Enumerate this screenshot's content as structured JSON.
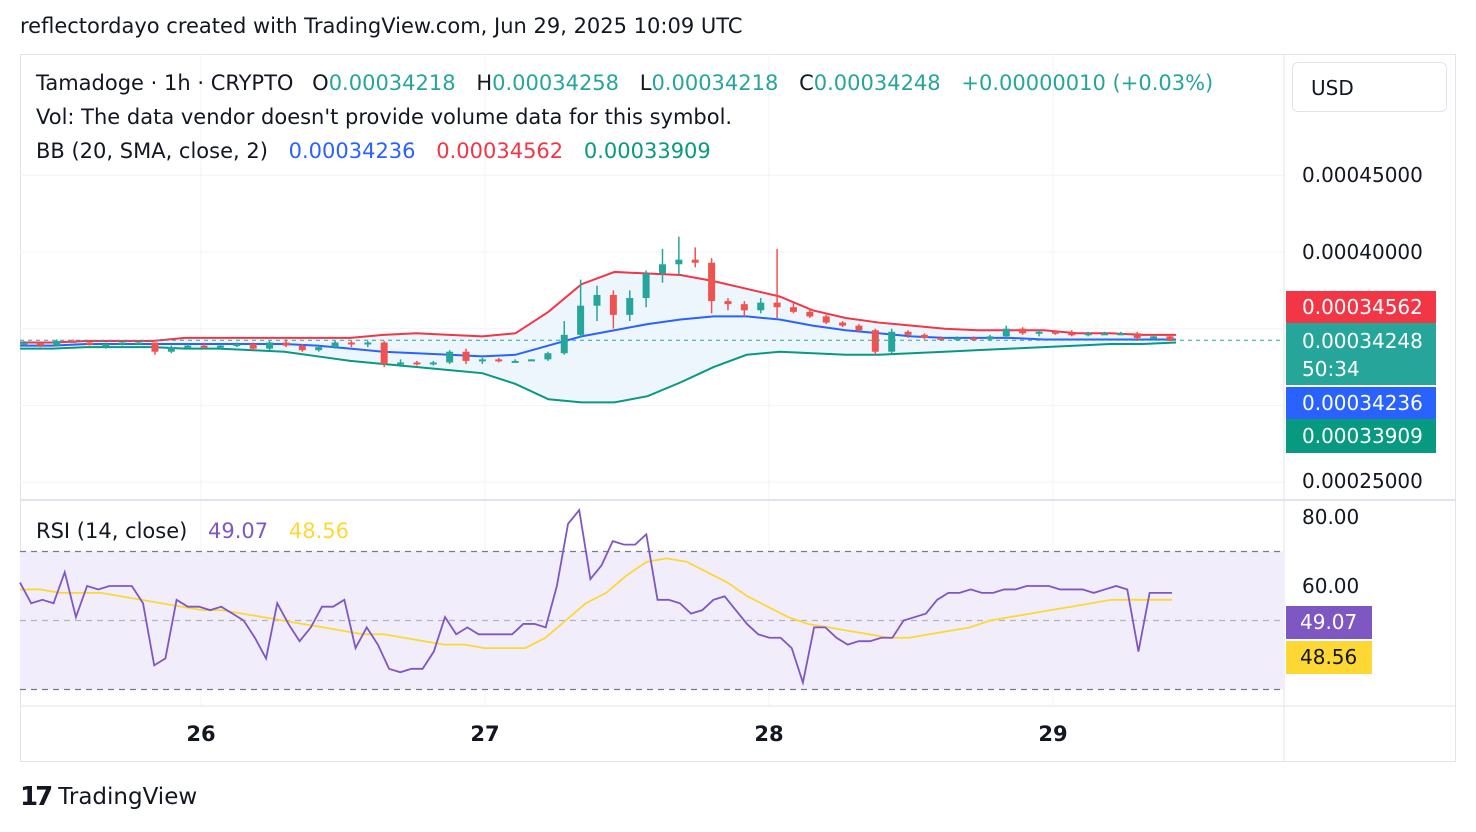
{
  "header": {
    "credit": "reflectordayo created with TradingView.com, Jun 29, 2025 10:09 UTC"
  },
  "legend": {
    "symbol": "Tamadoge · 1h · CRYPTO",
    "o_label": "O",
    "o_value": "0.00034218",
    "h_label": "H",
    "h_value": "0.00034258",
    "l_label": "L",
    "l_value": "0.00034218",
    "c_label": "C",
    "c_value": "0.00034248",
    "change": "+0.00000010 (+0.03%)",
    "vol_text": "Vol: The data vendor doesn't provide volume data for this symbol.",
    "bb_label": "BB (20, SMA, close, 2)",
    "bb_basis": "0.00034236",
    "bb_upper": "0.00034562",
    "bb_lower": "0.00033909",
    "rsi_label": "RSI (14, close)",
    "rsi_value": "49.07",
    "rsi_ma": "48.56"
  },
  "price_axis": {
    "unit": "USD",
    "ticks": [
      "0.00045000",
      "0.00040000",
      "0.00025000"
    ],
    "badges": {
      "upper": "0.00034562",
      "last": "0.00034248",
      "countdown": "50:34",
      "basis": "0.00034236",
      "lower": "0.00033909"
    }
  },
  "rsi_axis": {
    "ticks": [
      "80.00",
      "60.00"
    ],
    "rsi_badge": "49.07",
    "ma_badge": "48.56"
  },
  "time_axis": {
    "ticks": [
      "26",
      "27",
      "28",
      "29"
    ]
  },
  "footer": {
    "brand": "TradingView",
    "logo": "17"
  },
  "colors": {
    "up": "#26a69a",
    "down": "#ef5350",
    "basis": "#2962ff",
    "upper": "#f23645",
    "lower": "#089981",
    "rsi": "#7e57c2",
    "rsi_ma": "#fdd835",
    "fill": "#eef6fd",
    "rsi_band": "#f1edfb"
  },
  "chart_data": [
    {
      "type": "candlestick",
      "title": "Tamadoge · 1h · CRYPTO",
      "ylim": [
        0.00025,
        0.00045
      ],
      "x_ticks": [
        "26",
        "27",
        "28",
        "29"
      ],
      "candles_ohlc": [
        [
          0.00034,
          0.000342,
          0.000339,
          0.000341
        ],
        [
          0.000341,
          0.000341,
          0.000338,
          0.000339
        ],
        [
          0.000339,
          0.000343,
          0.000339,
          0.000342
        ],
        [
          0.000342,
          0.000343,
          0.000341,
          0.000341
        ],
        [
          0.000341,
          0.000342,
          0.000339,
          0.00034
        ],
        [
          0.00034,
          0.000341,
          0.000337,
          0.00034
        ],
        [
          0.00034,
          0.000342,
          0.000339,
          0.000341
        ],
        [
          0.000341,
          0.000342,
          0.00034,
          0.000341
        ],
        [
          0.000341,
          0.000341,
          0.000333,
          0.000335
        ],
        [
          0.000335,
          0.000339,
          0.000334,
          0.000338
        ],
        [
          0.000338,
          0.00034,
          0.000337,
          0.000339
        ],
        [
          0.000339,
          0.000341,
          0.000337,
          0.000338
        ],
        [
          0.000338,
          0.00034,
          0.000337,
          0.000339
        ],
        [
          0.000339,
          0.000341,
          0.000338,
          0.00034
        ],
        [
          0.00034,
          0.000341,
          0.000336,
          0.000337
        ],
        [
          0.000337,
          0.000342,
          0.000336,
          0.000341
        ],
        [
          0.000341,
          0.000343,
          0.000338,
          0.000339
        ],
        [
          0.000339,
          0.00034,
          0.000335,
          0.000336
        ],
        [
          0.000336,
          0.000339,
          0.000335,
          0.000338
        ],
        [
          0.000338,
          0.000342,
          0.000337,
          0.000341
        ],
        [
          0.000341,
          0.000342,
          0.000338,
          0.00034
        ],
        [
          0.00034,
          0.000342,
          0.000338,
          0.000341
        ],
        [
          0.000341,
          0.000342,
          0.000325,
          0.000327
        ],
        [
          0.000327,
          0.00033,
          0.000325,
          0.000328
        ],
        [
          0.000328,
          0.000329,
          0.000326,
          0.000327
        ],
        [
          0.000327,
          0.000329,
          0.000326,
          0.000328
        ],
        [
          0.000328,
          0.000336,
          0.000327,
          0.000335
        ],
        [
          0.000335,
          0.000337,
          0.000327,
          0.000329
        ],
        [
          0.000329,
          0.000331,
          0.000327,
          0.00033
        ],
        [
          0.00033,
          0.000331,
          0.000328,
          0.000329
        ],
        [
          0.000329,
          0.00033,
          0.000328,
          0.000329
        ],
        [
          0.000329,
          0.00033,
          0.000329,
          0.00033
        ],
        [
          0.00033,
          0.000335,
          0.000329,
          0.000334
        ],
        [
          0.000334,
          0.000355,
          0.000333,
          0.000346
        ],
        [
          0.000346,
          0.000382,
          0.000344,
          0.000365
        ],
        [
          0.000365,
          0.000378,
          0.000355,
          0.000372
        ],
        [
          0.000372,
          0.000375,
          0.00035,
          0.000359
        ],
        [
          0.000359,
          0.000375,
          0.000355,
          0.00037
        ],
        [
          0.00037,
          0.000388,
          0.000364,
          0.000386
        ],
        [
          0.000386,
          0.000402,
          0.00038,
          0.000392
        ],
        [
          0.000392,
          0.00041,
          0.000385,
          0.000395
        ],
        [
          0.000395,
          0.000403,
          0.00039,
          0.000393
        ],
        [
          0.000393,
          0.000396,
          0.00036,
          0.000368
        ],
        [
          0.000368,
          0.00037,
          0.000362,
          0.000366
        ],
        [
          0.000366,
          0.000368,
          0.000358,
          0.000362
        ],
        [
          0.000362,
          0.00037,
          0.00036,
          0.000367
        ],
        [
          0.000367,
          0.000402,
          0.000357,
          0.000364
        ],
        [
          0.000364,
          0.000367,
          0.00036,
          0.000361
        ],
        [
          0.000361,
          0.000363,
          0.000357,
          0.000358
        ],
        [
          0.000358,
          0.000359,
          0.000353,
          0.000354
        ],
        [
          0.000354,
          0.000355,
          0.000351,
          0.000352
        ],
        [
          0.000352,
          0.000353,
          0.000348,
          0.000349
        ],
        [
          0.000349,
          0.00035,
          0.000333,
          0.000335
        ],
        [
          0.000335,
          0.00035,
          0.000334,
          0.000348
        ],
        [
          0.000348,
          0.000349,
          0.000344,
          0.000346
        ],
        [
          0.000346,
          0.000347,
          0.000343,
          0.000344
        ],
        [
          0.000344,
          0.000345,
          0.000342,
          0.000343
        ],
        [
          0.000343,
          0.000345,
          0.000342,
          0.000344
        ],
        [
          0.000344,
          0.000345,
          0.000342,
          0.000343
        ],
        [
          0.000343,
          0.000346,
          0.000342,
          0.000345
        ],
        [
          0.000345,
          0.000352,
          0.000344,
          0.00035
        ],
        [
          0.00035,
          0.000351,
          0.000346,
          0.000347
        ],
        [
          0.000347,
          0.000349,
          0.000345,
          0.000348
        ],
        [
          0.000348,
          0.000349,
          0.000346,
          0.000347
        ],
        [
          0.000347,
          0.000349,
          0.000345,
          0.000346
        ],
        [
          0.000346,
          0.000348,
          0.000345,
          0.000347
        ],
        [
          0.000347,
          0.000348,
          0.000346,
          0.000347
        ],
        [
          0.000347,
          0.000348,
          0.000346,
          0.000347
        ],
        [
          0.000347,
          0.000348,
          0.000342,
          0.000344
        ],
        [
          0.000344,
          0.000346,
          0.000343,
          0.000345
        ],
        [
          0.000345,
          0.000346,
          0.000342,
          0.000342
        ]
      ],
      "series": [
        {
          "name": "BB upper",
          "values": [
            0.000341,
            0.000341,
            0.000342,
            0.000342,
            0.000342,
            0.000344,
            0.000344,
            0.000344,
            0.000344,
            0.000344,
            0.000344,
            0.000346,
            0.000347,
            0.000346,
            0.000345,
            0.000347,
            0.000361,
            0.000379,
            0.000387,
            0.000386,
            0.000385,
            0.000381,
            0.000376,
            0.000371,
            0.000362,
            0.000357,
            0.000354,
            0.000352,
            0.00035,
            0.000349,
            0.000349,
            0.000349,
            0.000347,
            0.000347,
            0.000346,
            0.000346
          ]
        },
        {
          "name": "BB basis",
          "values": [
            0.000339,
            0.000339,
            0.00034,
            0.00034,
            0.00034,
            0.00034,
            0.00034,
            0.00034,
            0.00034,
            0.000339,
            0.000337,
            0.000335,
            0.000334,
            0.000333,
            0.000332,
            0.000333,
            0.000339,
            0.000345,
            0.000349,
            0.000353,
            0.000356,
            0.000358,
            0.000358,
            0.000356,
            0.000352,
            0.000349,
            0.000347,
            0.000345,
            0.000344,
            0.000344,
            0.000344,
            0.000343,
            0.000343,
            0.000343,
            0.000343,
            0.000343
          ]
        },
        {
          "name": "BB lower",
          "values": [
            0.000337,
            0.000337,
            0.000338,
            0.000338,
            0.000338,
            0.000337,
            0.000337,
            0.000336,
            0.000335,
            0.000332,
            0.000329,
            0.000327,
            0.000325,
            0.000323,
            0.000321,
            0.000314,
            0.000304,
            0.000302,
            0.000302,
            0.000306,
            0.000315,
            0.000325,
            0.000333,
            0.000335,
            0.000334,
            0.000333,
            0.000333,
            0.000334,
            0.000335,
            0.000336,
            0.000337,
            0.000338,
            0.000339,
            0.00034,
            0.00034,
            0.000341
          ]
        }
      ]
    },
    {
      "type": "line",
      "title": "RSI (14, close)",
      "ylim": [
        25,
        85
      ],
      "y_ticks": [
        "80.00",
        "60.00"
      ],
      "bands": [
        70,
        50,
        30
      ],
      "series": [
        {
          "name": "RSI",
          "values": [
            61,
            55,
            56,
            55,
            64,
            51,
            60,
            59,
            60,
            60,
            60,
            55,
            37,
            39,
            56,
            54,
            54,
            53,
            54,
            52,
            50,
            45,
            39,
            55,
            49,
            44,
            48,
            54,
            54,
            56,
            42,
            48,
            43,
            36,
            35,
            36,
            36,
            41,
            51,
            46,
            48,
            46,
            46,
            46,
            46,
            49,
            49,
            48,
            60,
            78,
            82,
            62,
            66,
            73,
            72,
            72,
            75,
            56,
            56,
            55,
            52,
            53,
            56,
            57,
            53,
            49,
            46,
            45,
            45,
            42,
            32,
            48,
            48,
            45,
            43,
            44,
            44,
            45,
            45,
            50,
            51,
            52,
            56,
            58,
            58,
            59,
            58,
            58,
            59,
            59,
            60,
            60,
            60,
            59,
            59,
            59,
            58,
            59,
            60,
            59,
            41,
            58,
            58,
            58
          ]
        },
        {
          "name": "RSI MA",
          "values": [
            59,
            59,
            58,
            58,
            58,
            57,
            56,
            55,
            54,
            53,
            53,
            52,
            51,
            50,
            49,
            48,
            47,
            46,
            46,
            45,
            44,
            43,
            43,
            42,
            42,
            42,
            45,
            50,
            55,
            58,
            63,
            67,
            68,
            67,
            64,
            61,
            57,
            54,
            51,
            49,
            48,
            47,
            46,
            45,
            45,
            46,
            47,
            48,
            50,
            51,
            52,
            53,
            54,
            55,
            56,
            56,
            56,
            56
          ]
        }
      ]
    }
  ]
}
